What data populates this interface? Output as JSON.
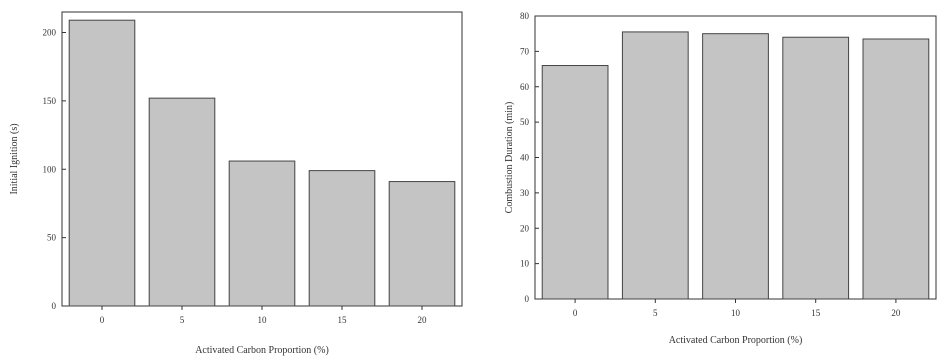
{
  "colors": {
    "bar_fill": "#c4c4c4",
    "bar_stroke": "#444444",
    "axis": "#333333"
  },
  "chart_data": [
    {
      "type": "bar",
      "categories": [
        "0",
        "5",
        "10",
        "15",
        "20"
      ],
      "values": [
        209,
        152,
        106,
        99,
        91
      ],
      "xlabel": "Activated Carbon Proportion (%)",
      "ylabel": "Initial Ignition (s)",
      "ylim": [
        0,
        215
      ],
      "yticks": [
        0,
        50,
        100,
        150,
        200
      ],
      "grid": false
    },
    {
      "type": "bar",
      "categories": [
        "0",
        "5",
        "10",
        "15",
        "20"
      ],
      "values": [
        66,
        75.5,
        75,
        74,
        73.5
      ],
      "xlabel": "Activated Carbon Proportion (%)",
      "ylabel": "Combustion Duration (min)",
      "ylim": [
        0,
        80
      ],
      "yticks": [
        0,
        10,
        20,
        30,
        40,
        50,
        60,
        70,
        80
      ],
      "grid": false
    }
  ]
}
